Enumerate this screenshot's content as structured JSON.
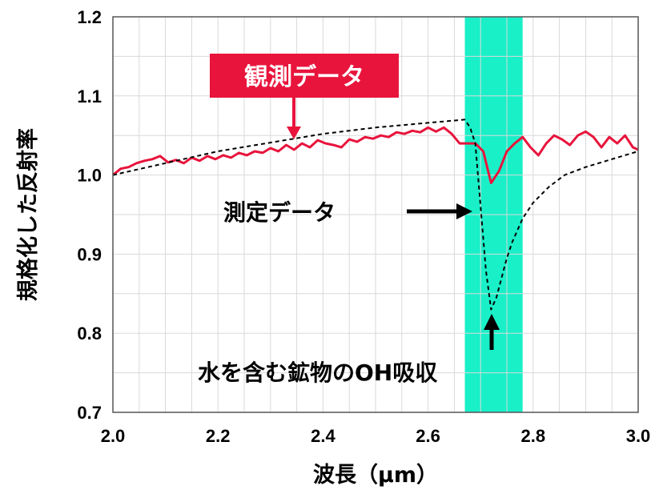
{
  "chart_data": {
    "type": "line",
    "title": "",
    "xlabel": "波長（μm）",
    "ylabel": "規格化した反射率",
    "xlim": [
      2.0,
      3.0
    ],
    "ylim": [
      0.7,
      1.2
    ],
    "x_ticks": [
      "2.0",
      "2.2",
      "2.4",
      "2.6",
      "2.8",
      "3.0"
    ],
    "y_ticks": [
      "0.7",
      "0.8",
      "0.9",
      "1.0",
      "1.1",
      "1.2"
    ],
    "grid": true,
    "highlight_band": {
      "x_range": [
        2.67,
        2.78
      ],
      "color": "#19f0c8"
    },
    "series": [
      {
        "name": "観測データ",
        "color": "#e8143c",
        "style": "solid",
        "x": [
          2.0,
          2.015,
          2.03,
          2.045,
          2.06,
          2.075,
          2.09,
          2.105,
          2.12,
          2.135,
          2.15,
          2.165,
          2.18,
          2.195,
          2.21,
          2.225,
          2.24,
          2.255,
          2.27,
          2.285,
          2.3,
          2.315,
          2.33,
          2.345,
          2.36,
          2.375,
          2.39,
          2.405,
          2.42,
          2.435,
          2.45,
          2.465,
          2.48,
          2.495,
          2.51,
          2.525,
          2.54,
          2.555,
          2.57,
          2.585,
          2.6,
          2.615,
          2.63,
          2.645,
          2.66,
          2.675,
          2.69,
          2.705,
          2.72,
          2.735,
          2.75,
          2.765,
          2.78,
          2.795,
          2.81,
          2.825,
          2.84,
          2.855,
          2.87,
          2.885,
          2.9,
          2.915,
          2.93,
          2.945,
          2.96,
          2.975,
          2.99,
          3.0
        ],
        "y": [
          1.0,
          1.008,
          1.01,
          1.015,
          1.018,
          1.02,
          1.024,
          1.016,
          1.019,
          1.015,
          1.022,
          1.018,
          1.024,
          1.02,
          1.025,
          1.022,
          1.028,
          1.025,
          1.03,
          1.028,
          1.034,
          1.03,
          1.038,
          1.032,
          1.04,
          1.035,
          1.044,
          1.04,
          1.038,
          1.035,
          1.045,
          1.042,
          1.048,
          1.046,
          1.05,
          1.048,
          1.054,
          1.052,
          1.056,
          1.054,
          1.06,
          1.055,
          1.06,
          1.052,
          1.04,
          1.04,
          1.04,
          1.03,
          0.99,
          1.005,
          1.03,
          1.04,
          1.048,
          1.035,
          1.025,
          1.04,
          1.05,
          1.045,
          1.038,
          1.05,
          1.055,
          1.048,
          1.035,
          1.048,
          1.04,
          1.05,
          1.035,
          1.032
        ]
      },
      {
        "name": "測定データ",
        "color": "#000000",
        "style": "dashed",
        "x": [
          2.0,
          2.1,
          2.2,
          2.3,
          2.4,
          2.5,
          2.6,
          2.67,
          2.68,
          2.69,
          2.7,
          2.71,
          2.72,
          2.73,
          2.74,
          2.75,
          2.76,
          2.78,
          2.8,
          2.83,
          2.86,
          2.9,
          2.95,
          3.0
        ],
        "y": [
          1.0,
          1.015,
          1.03,
          1.041,
          1.052,
          1.06,
          1.066,
          1.07,
          1.06,
          1.04,
          0.96,
          0.88,
          0.83,
          0.845,
          0.87,
          0.895,
          0.915,
          0.945,
          0.965,
          0.985,
          1.0,
          1.01,
          1.02,
          1.03
        ]
      }
    ],
    "annotations": [
      {
        "text": "観測データ",
        "style": "red-box",
        "points_to": [
          2.35,
          1.04
        ]
      },
      {
        "text": "測定データ",
        "style": "plain",
        "points_to": [
          2.675,
          0.953
        ]
      },
      {
        "text": "水を含む鉱物のOH吸収",
        "style": "plain",
        "points_to": [
          2.72,
          0.82
        ]
      }
    ]
  }
}
